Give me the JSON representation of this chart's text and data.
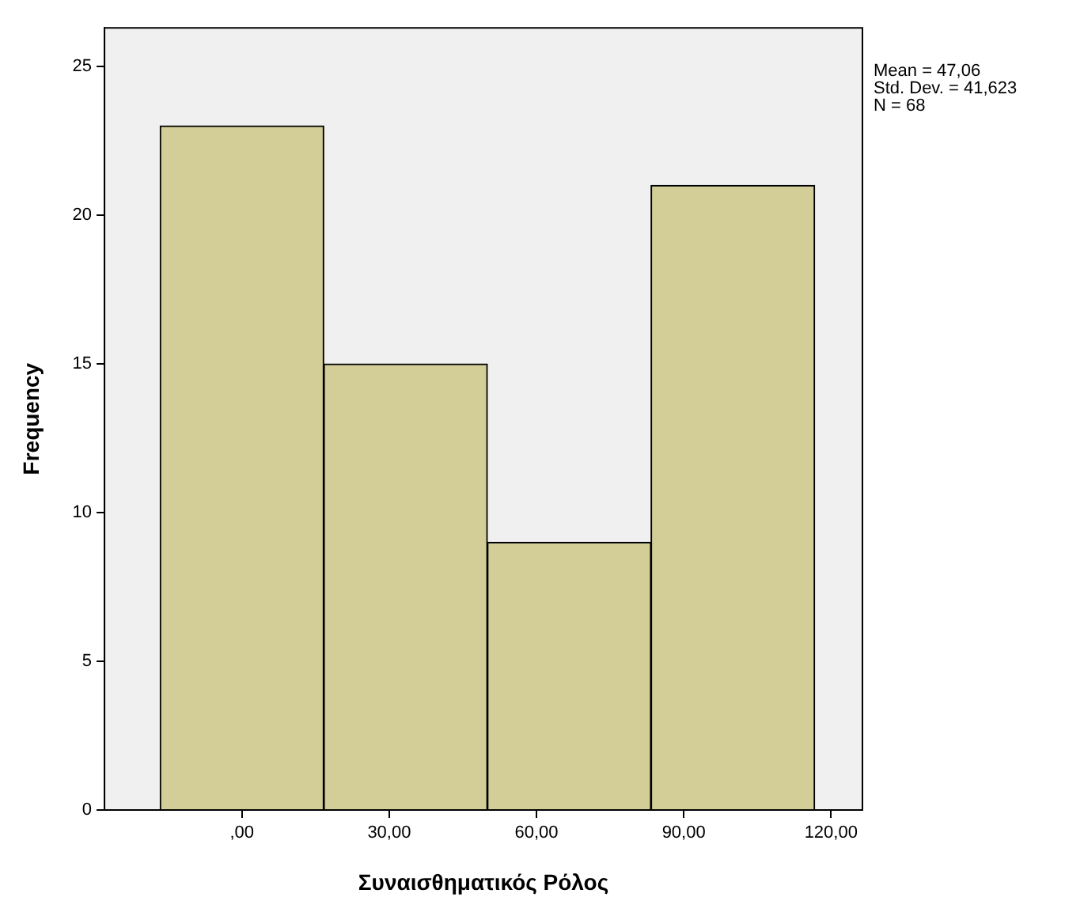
{
  "chart_data": {
    "type": "histogram",
    "xlabel": "Συναισθηματικός Ρόλος",
    "ylabel": "Frequency",
    "bins": [
      -16.67,
      16.67,
      50,
      83.33,
      116.67
    ],
    "values": [
      23,
      15,
      9,
      21
    ],
    "color": "#d3ce97",
    "xlim": [
      -28,
      126.4
    ],
    "xticks": [
      {
        "value": 0,
        "label": ",00"
      },
      {
        "value": 30,
        "label": "30,00"
      },
      {
        "value": 60,
        "label": "60,00"
      },
      {
        "value": 90,
        "label": "90,00"
      },
      {
        "value": 120,
        "label": "120,00"
      }
    ],
    "ylim": [
      0,
      26.3
    ],
    "yticks": [
      0,
      5,
      10,
      15,
      20,
      25
    ],
    "grid": false,
    "legend": false,
    "annotations": [
      "Mean = 47,06",
      "Std. Dev. = 41,623",
      "N = 68"
    ]
  }
}
